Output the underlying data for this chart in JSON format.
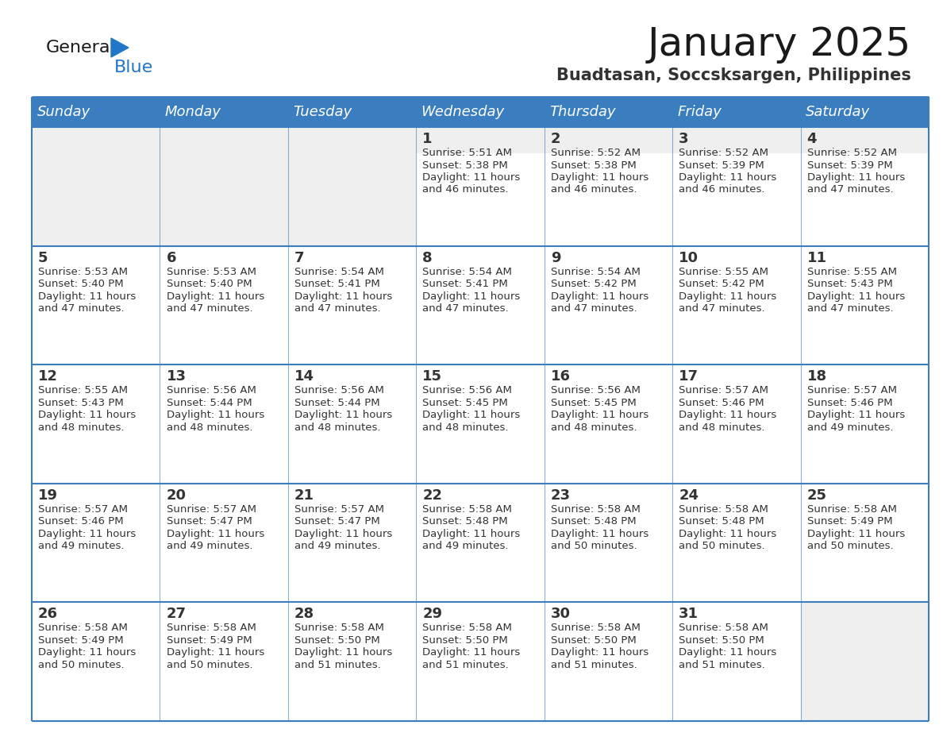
{
  "title": "January 2025",
  "subtitle": "Buadtasan, Soccsksargen, Philippines",
  "days_of_week": [
    "Sunday",
    "Monday",
    "Tuesday",
    "Wednesday",
    "Thursday",
    "Friday",
    "Saturday"
  ],
  "header_bg": "#3a7ebf",
  "header_text_color": "#ffffff",
  "cell_bg_light": "#efefef",
  "cell_bg_white": "#ffffff",
  "grid_line_color": "#3a7ebf",
  "text_color": "#333333",
  "title_color": "#1a1a1a",
  "subtitle_color": "#333333",
  "logo_general_color": "#1a1a1a",
  "logo_blue_color": "#2176c7",
  "weeks": [
    [
      {
        "day": null,
        "sunrise": null,
        "sunset": null,
        "daylight": null
      },
      {
        "day": null,
        "sunrise": null,
        "sunset": null,
        "daylight": null
      },
      {
        "day": null,
        "sunrise": null,
        "sunset": null,
        "daylight": null
      },
      {
        "day": 1,
        "sunrise": "5:51 AM",
        "sunset": "5:38 PM",
        "daylight": "11 hours and 46 minutes."
      },
      {
        "day": 2,
        "sunrise": "5:52 AM",
        "sunset": "5:38 PM",
        "daylight": "11 hours and 46 minutes."
      },
      {
        "day": 3,
        "sunrise": "5:52 AM",
        "sunset": "5:39 PM",
        "daylight": "11 hours and 46 minutes."
      },
      {
        "day": 4,
        "sunrise": "5:52 AM",
        "sunset": "5:39 PM",
        "daylight": "11 hours and 47 minutes."
      }
    ],
    [
      {
        "day": 5,
        "sunrise": "5:53 AM",
        "sunset": "5:40 PM",
        "daylight": "11 hours and 47 minutes."
      },
      {
        "day": 6,
        "sunrise": "5:53 AM",
        "sunset": "5:40 PM",
        "daylight": "11 hours and 47 minutes."
      },
      {
        "day": 7,
        "sunrise": "5:54 AM",
        "sunset": "5:41 PM",
        "daylight": "11 hours and 47 minutes."
      },
      {
        "day": 8,
        "sunrise": "5:54 AM",
        "sunset": "5:41 PM",
        "daylight": "11 hours and 47 minutes."
      },
      {
        "day": 9,
        "sunrise": "5:54 AM",
        "sunset": "5:42 PM",
        "daylight": "11 hours and 47 minutes."
      },
      {
        "day": 10,
        "sunrise": "5:55 AM",
        "sunset": "5:42 PM",
        "daylight": "11 hours and 47 minutes."
      },
      {
        "day": 11,
        "sunrise": "5:55 AM",
        "sunset": "5:43 PM",
        "daylight": "11 hours and 47 minutes."
      }
    ],
    [
      {
        "day": 12,
        "sunrise": "5:55 AM",
        "sunset": "5:43 PM",
        "daylight": "11 hours and 48 minutes."
      },
      {
        "day": 13,
        "sunrise": "5:56 AM",
        "sunset": "5:44 PM",
        "daylight": "11 hours and 48 minutes."
      },
      {
        "day": 14,
        "sunrise": "5:56 AM",
        "sunset": "5:44 PM",
        "daylight": "11 hours and 48 minutes."
      },
      {
        "day": 15,
        "sunrise": "5:56 AM",
        "sunset": "5:45 PM",
        "daylight": "11 hours and 48 minutes."
      },
      {
        "day": 16,
        "sunrise": "5:56 AM",
        "sunset": "5:45 PM",
        "daylight": "11 hours and 48 minutes."
      },
      {
        "day": 17,
        "sunrise": "5:57 AM",
        "sunset": "5:46 PM",
        "daylight": "11 hours and 48 minutes."
      },
      {
        "day": 18,
        "sunrise": "5:57 AM",
        "sunset": "5:46 PM",
        "daylight": "11 hours and 49 minutes."
      }
    ],
    [
      {
        "day": 19,
        "sunrise": "5:57 AM",
        "sunset": "5:46 PM",
        "daylight": "11 hours and 49 minutes."
      },
      {
        "day": 20,
        "sunrise": "5:57 AM",
        "sunset": "5:47 PM",
        "daylight": "11 hours and 49 minutes."
      },
      {
        "day": 21,
        "sunrise": "5:57 AM",
        "sunset": "5:47 PM",
        "daylight": "11 hours and 49 minutes."
      },
      {
        "day": 22,
        "sunrise": "5:58 AM",
        "sunset": "5:48 PM",
        "daylight": "11 hours and 49 minutes."
      },
      {
        "day": 23,
        "sunrise": "5:58 AM",
        "sunset": "5:48 PM",
        "daylight": "11 hours and 50 minutes."
      },
      {
        "day": 24,
        "sunrise": "5:58 AM",
        "sunset": "5:48 PM",
        "daylight": "11 hours and 50 minutes."
      },
      {
        "day": 25,
        "sunrise": "5:58 AM",
        "sunset": "5:49 PM",
        "daylight": "11 hours and 50 minutes."
      }
    ],
    [
      {
        "day": 26,
        "sunrise": "5:58 AM",
        "sunset": "5:49 PM",
        "daylight": "11 hours and 50 minutes."
      },
      {
        "day": 27,
        "sunrise": "5:58 AM",
        "sunset": "5:49 PM",
        "daylight": "11 hours and 50 minutes."
      },
      {
        "day": 28,
        "sunrise": "5:58 AM",
        "sunset": "5:50 PM",
        "daylight": "11 hours and 51 minutes."
      },
      {
        "day": 29,
        "sunrise": "5:58 AM",
        "sunset": "5:50 PM",
        "daylight": "11 hours and 51 minutes."
      },
      {
        "day": 30,
        "sunrise": "5:58 AM",
        "sunset": "5:50 PM",
        "daylight": "11 hours and 51 minutes."
      },
      {
        "day": 31,
        "sunrise": "5:58 AM",
        "sunset": "5:50 PM",
        "daylight": "11 hours and 51 minutes."
      },
      {
        "day": null,
        "sunrise": null,
        "sunset": null,
        "daylight": null
      }
    ]
  ]
}
